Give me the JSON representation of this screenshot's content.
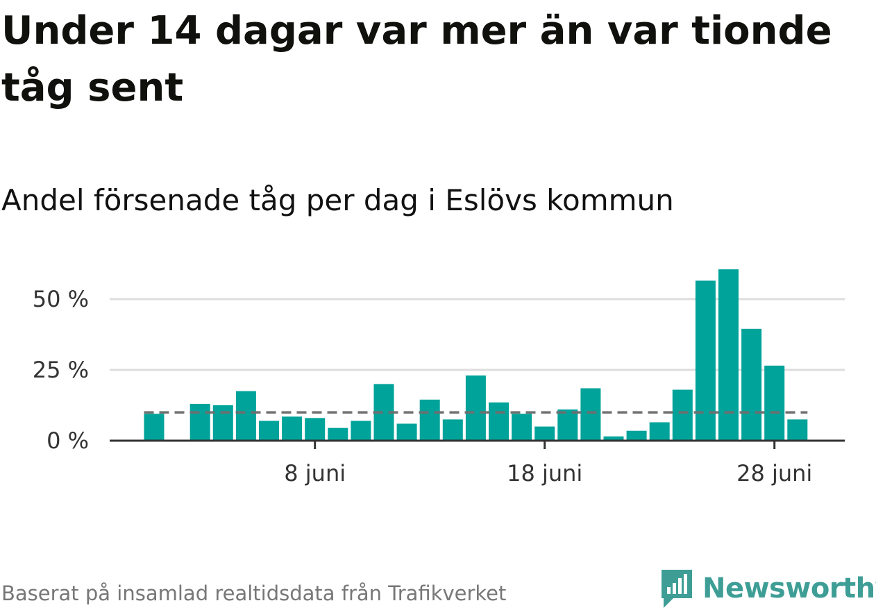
{
  "title": "Under 14 dagar var mer än var tionde tåg sent",
  "subtitle": "Andel försenade tåg per dag i Eslövs kommun",
  "footer": "Baserat på insamlad realtidsdata från Trafikverket",
  "logo": {
    "text": "Newsworthy",
    "icon": "newsworthy-logo-icon",
    "color": "#3e9e96"
  },
  "chart_data": {
    "type": "bar",
    "x_label_format": "day juni",
    "x": [
      1,
      2,
      3,
      4,
      5,
      6,
      7,
      8,
      9,
      10,
      11,
      12,
      13,
      14,
      15,
      16,
      17,
      18,
      19,
      20,
      21,
      22,
      23,
      24,
      25,
      26,
      27,
      28,
      29,
      30
    ],
    "values": [
      9.5,
      null,
      13,
      12.5,
      17.5,
      7,
      8.5,
      8,
      4.5,
      7,
      20,
      6,
      14.5,
      7.5,
      23,
      13.5,
      9.5,
      5,
      11,
      18.5,
      1.5,
      3.5,
      6.5,
      18,
      56.5,
      60.5,
      39.5,
      26.5,
      7.5,
      null
    ],
    "x_ticks": [
      {
        "value": 8,
        "label": "8 juni"
      },
      {
        "value": 18,
        "label": "18 juni"
      },
      {
        "value": 28,
        "label": "28 juni"
      }
    ],
    "y_ticks": [
      {
        "value": 0,
        "label": "0 %"
      },
      {
        "value": 25,
        "label": "25 %"
      },
      {
        "value": 50,
        "label": "50 %"
      }
    ],
    "reference_line": 10,
    "ylim": [
      0,
      62
    ],
    "grid": true,
    "bar_color": "#00a39a",
    "reference_color": "#6e6e6e",
    "grid_color": "#dddddd",
    "axis_color": "#333333"
  }
}
